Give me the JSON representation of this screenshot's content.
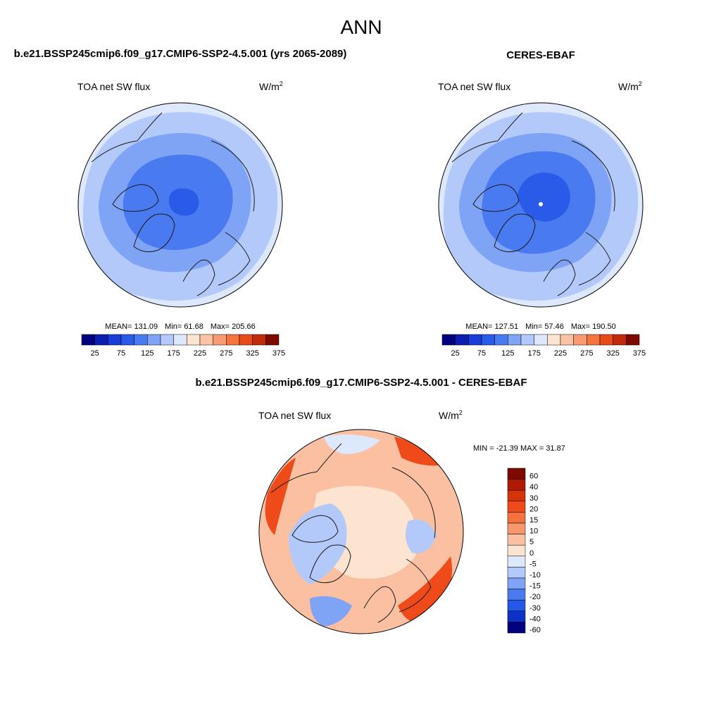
{
  "page_title": "ANN",
  "chart_data": [
    {
      "type": "heatmap",
      "projection": "north-polar-stereographic",
      "title": "b.e21.BSSP245cmip6.f09_g17.CMIP6-SSP2-4.5.001 (yrs 2065-2089)",
      "variable": "TOA net SW flux",
      "units_base": "W/m",
      "units_exp": "2",
      "stats": {
        "mean_label": "MEAN=",
        "mean": "131.09",
        "min_label": "Min=",
        "min": "61.68",
        "max_label": "Max=",
        "max": "205.66"
      },
      "colorbar_levels": [
        25,
        50,
        75,
        100,
        125,
        150,
        175,
        200,
        225,
        250,
        275,
        300,
        325,
        350,
        375
      ],
      "colorbar_tick_labels": [
        "25",
        "75",
        "125",
        "175",
        "225",
        "275",
        "325",
        "375"
      ],
      "field_levels": {
        "center": 75,
        "inner": 100,
        "mid": 125,
        "outer": 150,
        "rim": 175
      }
    },
    {
      "type": "heatmap",
      "projection": "north-polar-stereographic",
      "title": "CERES-EBAF",
      "variable": "TOA net SW flux",
      "units_base": "W/m",
      "units_exp": "2",
      "stats": {
        "mean_label": "MEAN=",
        "mean": "127.51",
        "min_label": "Min=",
        "min": "57.46",
        "max_label": "Max=",
        "max": "190.50"
      },
      "colorbar_levels": [
        25,
        50,
        75,
        100,
        125,
        150,
        175,
        200,
        225,
        250,
        275,
        300,
        325,
        350,
        375
      ],
      "colorbar_tick_labels": [
        "25",
        "75",
        "125",
        "175",
        "225",
        "275",
        "325",
        "375"
      ],
      "field_levels": {
        "center": 75,
        "inner": 100,
        "mid": 125,
        "outer": 150,
        "rim": 175
      }
    },
    {
      "type": "heatmap",
      "projection": "north-polar-stereographic",
      "title": "b.e21.BSSP245cmip6.f09_g17.CMIP6-SSP2-4.5.001 - CERES-EBAF",
      "variable": "TOA net SW flux",
      "units_base": "W/m",
      "units_exp": "2",
      "minmax_label": "MIN = -21.39  MAX =  31.87",
      "min": -21.39,
      "max": 31.87,
      "colorbar_levels": [
        "60",
        "40",
        "30",
        "20",
        "15",
        "10",
        "5",
        "0",
        "-5",
        "-10",
        "-15",
        "-20",
        "-30",
        "-40",
        "-60"
      ]
    }
  ],
  "colors": {
    "abs_palette": [
      "#00007f",
      "#0a1fb0",
      "#1a3cd8",
      "#2a5be8",
      "#4a7af0",
      "#7fa3f5",
      "#b3c9fa",
      "#dde8fd",
      "#fde4d0",
      "#fbc2a4",
      "#f89b74",
      "#f4733f",
      "#e84a1c",
      "#c22a0c",
      "#7d0a00"
    ],
    "diff_palette": [
      "#7d0a00",
      "#b01a04",
      "#d83208",
      "#ef4a1a",
      "#f47140",
      "#f8966e",
      "#fbc0a2",
      "#fde4d0",
      "#dde8fd",
      "#b3c9fa",
      "#7fa3f5",
      "#4a7af0",
      "#2458e8",
      "#0e32c8",
      "#00007f"
    ],
    "coast": "#1a1a1a"
  }
}
